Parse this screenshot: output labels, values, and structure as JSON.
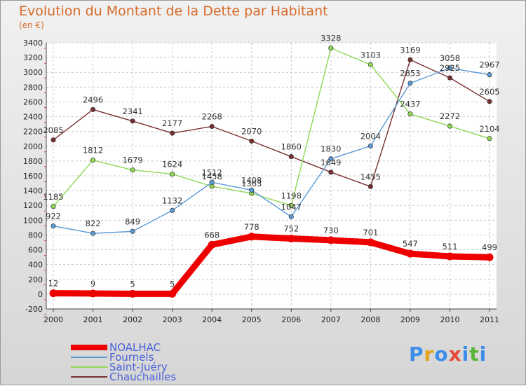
{
  "page": {
    "title": "Evolution du Montant de la Dette par Habitant",
    "unit_label": "(en €)",
    "brand": [
      "P",
      "r",
      "o",
      "x",
      "i",
      "t",
      "i"
    ],
    "brand_colors": [
      "#3c8ee8",
      "#e8a21e",
      "#3c8ee8",
      "#e24a3a",
      "#3c8ee8",
      "#59b53a",
      "#3c8ee8"
    ]
  },
  "chart_data": {
    "type": "line",
    "x": [
      "2000",
      "2001",
      "2002",
      "2003",
      "2004",
      "2005",
      "2006",
      "2007",
      "2008",
      "2009",
      "2010",
      "2011"
    ],
    "ylim": [
      -200,
      3400
    ],
    "yticks": [
      -200,
      0,
      200,
      400,
      600,
      800,
      1000,
      1200,
      1400,
      1600,
      1800,
      2000,
      2200,
      2400,
      2600,
      2800,
      3000,
      3200,
      3400
    ],
    "grid": true,
    "legend_position": "bottom-left",
    "series": [
      {
        "name": "NOALHAC",
        "color": "#ee0000",
        "values": [
          12,
          9,
          5,
          5,
          668,
          778,
          752,
          730,
          701,
          547,
          511,
          499
        ]
      },
      {
        "name": "Fournels",
        "color": "#5b9bd5",
        "values": [
          922,
          822,
          849,
          1132,
          1512,
          1408,
          1047,
          1830,
          2004,
          2853,
          3058,
          2967
        ]
      },
      {
        "name": "Saint-Juéry",
        "color": "#8fd855",
        "values": [
          1185,
          1812,
          1679,
          1624,
          1458,
          1363,
          1198,
          3328,
          3103,
          2437,
          2272,
          2104
        ]
      },
      {
        "name": "Chauchailles",
        "color": "#7a2f2f",
        "values": [
          2085,
          2496,
          2341,
          2177,
          2268,
          2070,
          1860,
          1649,
          1455,
          3169,
          2925,
          2605
        ]
      }
    ]
  }
}
